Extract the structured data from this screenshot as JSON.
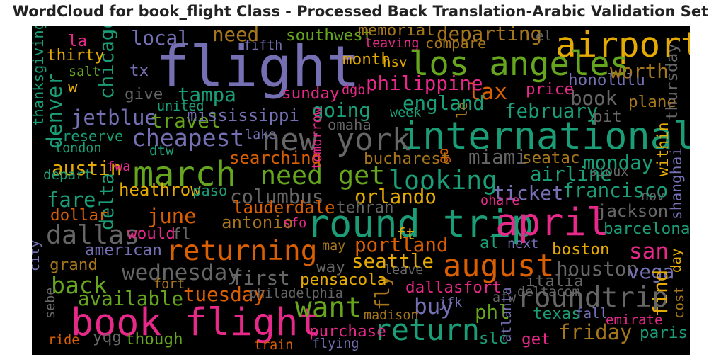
{
  "title": "WordCloud for book_flight Class - Processed Back Translation-Arabic Validation Set",
  "chart_data": {
    "type": "wordcloud",
    "title": "WordCloud for book_flight Class - Processed Back Translation-Arabic Validation Set",
    "background": "#000000",
    "palette": "Dark2",
    "words": [
      {
        "text": "flight",
        "weight": 1.0,
        "color": "#7570b3"
      },
      {
        "text": "international",
        "weight": 0.62,
        "color": "#1b9e77"
      },
      {
        "text": "round trip",
        "weight": 0.62,
        "color": "#1b9e77"
      },
      {
        "text": "april",
        "weight": 0.62,
        "color": "#e7298a"
      },
      {
        "text": "book flight",
        "weight": 0.62,
        "color": "#e7298a"
      },
      {
        "text": "airport",
        "weight": 0.56,
        "color": "#e6ab02"
      },
      {
        "text": "los angeles",
        "weight": 0.53,
        "color": "#66a61e"
      },
      {
        "text": "march",
        "weight": 0.55,
        "color": "#66a61e"
      },
      {
        "text": "new york",
        "weight": 0.48,
        "color": "#666666"
      },
      {
        "text": "august",
        "weight": 0.48,
        "color": "#d95f02"
      },
      {
        "text": "return",
        "weight": 0.45,
        "color": "#1b9e77"
      },
      {
        "text": "roundtrip",
        "weight": 0.42,
        "color": "#666666"
      },
      {
        "text": "want",
        "weight": 0.42,
        "color": "#66a61e"
      },
      {
        "text": "returning",
        "weight": 0.42,
        "color": "#d95f02"
      },
      {
        "text": "dallas",
        "weight": 0.38,
        "color": "#666666"
      },
      {
        "text": "need get",
        "weight": 0.38,
        "color": "#66a61e"
      },
      {
        "text": "looking",
        "weight": 0.38,
        "color": "#1b9e77"
      },
      {
        "text": "cheapest",
        "weight": 0.33,
        "color": "#7570b3"
      },
      {
        "text": "back",
        "weight": 0.33,
        "color": "#66a61e"
      },
      {
        "text": "wednesday",
        "weight": 0.3,
        "color": "#666666"
      },
      {
        "text": "lax",
        "weight": 0.3,
        "color": "#d95f02"
      },
      {
        "text": "buy",
        "weight": 0.3,
        "color": "#7570b3"
      },
      {
        "text": "san",
        "weight": 0.3,
        "color": "#e7298a"
      },
      {
        "text": "denver",
        "weight": 0.28,
        "color": "#1b9e77"
      },
      {
        "text": "chicago",
        "weight": 0.25,
        "color": "#1b9e77"
      },
      {
        "text": "jetblue",
        "weight": 0.27,
        "color": "#7570b3"
      },
      {
        "text": "fare",
        "weight": 0.27,
        "color": "#1b9e77"
      },
      {
        "text": "austin",
        "weight": 0.25,
        "color": "#e6ab02"
      },
      {
        "text": "june",
        "weight": 0.27,
        "color": "#d95f02"
      },
      {
        "text": "delta",
        "weight": 0.24,
        "color": "#1b9e77"
      },
      {
        "text": "friday",
        "weight": 0.27,
        "color": "#a6761d"
      },
      {
        "text": "departing",
        "weight": 0.25,
        "color": "#a6761d"
      },
      {
        "text": "local",
        "weight": 0.25,
        "color": "#7570b3"
      },
      {
        "text": "need",
        "weight": 0.25,
        "color": "#a6761d"
      },
      {
        "text": "philippine",
        "weight": 0.25,
        "color": "#e7298a"
      },
      {
        "text": "worth",
        "weight": 0.25,
        "color": "#a6761d"
      },
      {
        "text": "travel",
        "weight": 0.25,
        "color": "#66a61e"
      },
      {
        "text": "tampa",
        "weight": 0.25,
        "color": "#1b9e77"
      },
      {
        "text": "going",
        "weight": 0.25,
        "color": "#1b9e77"
      },
      {
        "text": "england",
        "weight": 0.25,
        "color": "#1b9e77"
      },
      {
        "text": "february",
        "weight": 0.25,
        "color": "#1b9e77"
      },
      {
        "text": "book",
        "weight": 0.25,
        "color": "#666666"
      },
      {
        "text": "monday",
        "weight": 0.25,
        "color": "#1b9e77"
      },
      {
        "text": "airline",
        "weight": 0.25,
        "color": "#1b9e77"
      },
      {
        "text": "ticket",
        "weight": 0.25,
        "color": "#7570b3"
      },
      {
        "text": "francisco",
        "weight": 0.25,
        "color": "#1b9e77"
      },
      {
        "text": "orlando",
        "weight": 0.25,
        "color": "#e6ab02"
      },
      {
        "text": "columbus",
        "weight": 0.25,
        "color": "#666666"
      },
      {
        "text": "miami",
        "weight": 0.25,
        "color": "#666666"
      },
      {
        "text": "portland",
        "weight": 0.25,
        "color": "#d95f02"
      },
      {
        "text": "seattle",
        "weight": 0.25,
        "color": "#e6ab02"
      },
      {
        "text": "houston",
        "weight": 0.25,
        "color": "#666666"
      },
      {
        "text": "vega",
        "weight": 0.25,
        "color": "#7570b3"
      },
      {
        "text": "first",
        "weight": 0.25,
        "color": "#666666"
      },
      {
        "text": "tuesday",
        "weight": 0.25,
        "color": "#d95f02"
      },
      {
        "text": "available",
        "weight": 0.25,
        "color": "#66a61e"
      },
      {
        "text": "find",
        "weight": 0.25,
        "color": "#e6ab02"
      },
      {
        "text": "phl",
        "weight": 0.25,
        "color": "#66a61e"
      },
      {
        "text": "fly",
        "weight": 0.25,
        "color": "#a6761d"
      },
      {
        "text": "mississippi",
        "weight": 0.2,
        "color": "#7570b3"
      },
      {
        "text": "searching",
        "weight": 0.2,
        "color": "#d95f02"
      },
      {
        "text": "heathrow",
        "weight": 0.2,
        "color": "#e6ab02"
      },
      {
        "text": "lauderdale",
        "weight": 0.2,
        "color": "#d95f02"
      },
      {
        "text": "antonio",
        "weight": 0.2,
        "color": "#a6761d"
      },
      {
        "text": "jackson",
        "weight": 0.2,
        "color": "#666666"
      },
      {
        "text": "barcelona",
        "weight": 0.18,
        "color": "#1b9e77"
      },
      {
        "text": "boston",
        "weight": 0.18,
        "color": "#e6ab02"
      },
      {
        "text": "pensacola",
        "weight": 0.18,
        "color": "#e6ab02"
      },
      {
        "text": "dallasfort",
        "weight": 0.18,
        "color": "#e7298a"
      },
      {
        "text": "italia",
        "weight": 0.18,
        "color": "#666666"
      },
      {
        "text": "texas",
        "weight": 0.18,
        "color": "#1b9e77"
      },
      {
        "text": "paris",
        "weight": 0.18,
        "color": "#1b9e77"
      },
      {
        "text": "purchase",
        "weight": 0.18,
        "color": "#e7298a"
      },
      {
        "text": "though",
        "weight": 0.18,
        "color": "#66a61e"
      },
      {
        "text": "yqg",
        "weight": 0.18,
        "color": "#666666"
      },
      {
        "text": "slc",
        "weight": 0.18,
        "color": "#1b9e77"
      },
      {
        "text": "get",
        "weight": 0.18,
        "color": "#e7298a"
      },
      {
        "text": "bucharest",
        "weight": 0.18,
        "color": "#a6761d"
      },
      {
        "text": "seatac",
        "weight": 0.18,
        "color": "#a6761d"
      },
      {
        "text": "tehran",
        "weight": 0.18,
        "color": "#666666"
      },
      {
        "text": "omaha",
        "weight": 0.15,
        "color": "#666666"
      },
      {
        "text": "southwest",
        "weight": 0.18,
        "color": "#66a61e"
      },
      {
        "text": "memorial",
        "weight": 0.18,
        "color": "#a6761d"
      },
      {
        "text": "compare",
        "weight": 0.15,
        "color": "#a6761d"
      },
      {
        "text": "month",
        "weight": 0.18,
        "color": "#e6ab02"
      },
      {
        "text": "sunday",
        "weight": 0.18,
        "color": "#e7298a"
      },
      {
        "text": "price",
        "weight": 0.18,
        "color": "#e7298a"
      },
      {
        "text": "honolulu",
        "weight": 0.18,
        "color": "#7570b3"
      },
      {
        "text": "plane",
        "weight": 0.18,
        "color": "#a6761d"
      },
      {
        "text": "thursday",
        "weight": 0.18,
        "color": "#666666"
      },
      {
        "text": "pit",
        "weight": 0.18,
        "color": "#666666"
      },
      {
        "text": "dollar",
        "weight": 0.18,
        "color": "#d95f02"
      },
      {
        "text": "american",
        "weight": 0.18,
        "color": "#7570b3"
      },
      {
        "text": "grand",
        "weight": 0.18,
        "color": "#a6761d"
      },
      {
        "text": "would",
        "weight": 0.18,
        "color": "#e7298a"
      },
      {
        "text": "fl",
        "weight": 0.18,
        "color": "#666666"
      },
      {
        "text": "way",
        "weight": 0.18,
        "color": "#666666"
      },
      {
        "text": "ft",
        "weight": 0.18,
        "color": "#e6ab02"
      },
      {
        "text": "al",
        "weight": 0.18,
        "color": "#1b9e77"
      },
      {
        "text": "la",
        "weight": 0.18,
        "color": "#e7298a"
      },
      {
        "text": "thirty",
        "weight": 0.18,
        "color": "#e6ab02"
      },
      {
        "text": "w",
        "weight": 0.18,
        "color": "#e6ab02"
      },
      {
        "text": "tx",
        "weight": 0.18,
        "color": "#7570b3"
      },
      {
        "text": "give",
        "weight": 0.18,
        "color": "#666666"
      },
      {
        "text": "within",
        "weight": 0.16,
        "color": "#e6ab02"
      },
      {
        "text": "shanghai",
        "weight": 0.16,
        "color": "#7570b3"
      },
      {
        "text": "thanksgiving",
        "weight": 0.15,
        "color": "#1b9e77"
      },
      {
        "text": "reserve",
        "weight": 0.15,
        "color": "#1b9e77"
      },
      {
        "text": "paso",
        "weight": 0.15,
        "color": "#1b9e77"
      },
      {
        "text": "depart",
        "weight": 0.13,
        "color": "#1b9e77"
      },
      {
        "text": "dtw",
        "weight": 0.13,
        "color": "#1b9e77"
      },
      {
        "text": "le",
        "weight": 0.13,
        "color": "#a6761d"
      },
      {
        "text": "el",
        "weight": 0.13,
        "color": "#666666"
      },
      {
        "text": "hsv",
        "weight": 0.13,
        "color": "#e6ab02"
      },
      {
        "text": "dgb",
        "weight": 0.12,
        "color": "#e7298a"
      },
      {
        "text": "cost",
        "weight": 0.13,
        "color": "#a6761d"
      },
      {
        "text": "day",
        "weight": 0.13,
        "color": "#e6ab02"
      },
      {
        "text": "emirate",
        "weight": 0.13,
        "color": "#e7298a"
      },
      {
        "text": "fall",
        "weight": 0.13,
        "color": "#7570b3"
      },
      {
        "text": "deltacom",
        "weight": 0.12,
        "color": "#666666"
      },
      {
        "text": "jfk",
        "weight": 0.12,
        "color": "#7570b3"
      },
      {
        "text": "madison",
        "weight": 0.12,
        "color": "#a6761d"
      },
      {
        "text": "afw",
        "weight": 0.12,
        "color": "#666666"
      },
      {
        "text": "atlanta",
        "weight": 0.12,
        "color": "#7570b3"
      },
      {
        "text": "flying",
        "weight": 0.12,
        "color": "#7570b3"
      },
      {
        "text": "train",
        "weight": 0.12,
        "color": "#d95f02"
      },
      {
        "text": "ride",
        "weight": 0.12,
        "color": "#d95f02"
      },
      {
        "text": "sebe",
        "weight": 0.12,
        "color": "#666666"
      },
      {
        "text": "fort",
        "weight": 0.12,
        "color": "#a6761d"
      },
      {
        "text": "philadelphia",
        "weight": 0.12,
        "color": "#666666"
      },
      {
        "text": "leave",
        "weight": 0.12,
        "color": "#666666"
      },
      {
        "text": "next",
        "weight": 0.12,
        "color": "#7570b3"
      },
      {
        "text": "may",
        "weight": 0.12,
        "color": "#a6761d"
      },
      {
        "text": "sfo",
        "weight": 0.12,
        "color": "#e7298a"
      },
      {
        "text": "ohare",
        "weight": 0.12,
        "color": "#e7298a"
      },
      {
        "text": "nov",
        "weight": 0.12,
        "color": "#666666"
      },
      {
        "text": "sioux",
        "weight": 0.12,
        "color": "#666666"
      },
      {
        "text": "go",
        "weight": 0.12,
        "color": "#d95f02"
      },
      {
        "text": "tomorrow",
        "weight": 0.12,
        "color": "#e7298a"
      },
      {
        "text": "fwa",
        "weight": 0.12,
        "color": "#e7298a"
      },
      {
        "text": "lake",
        "weight": 0.12,
        "color": "#7570b3"
      },
      {
        "text": "london",
        "weight": 0.12,
        "color": "#1b9e77"
      },
      {
        "text": "salt",
        "weight": 0.12,
        "color": "#66a61e"
      },
      {
        "text": "united",
        "weight": 0.12,
        "color": "#1b9e77"
      },
      {
        "text": "week",
        "weight": 0.12,
        "color": "#1b9e77"
      },
      {
        "text": "leaving",
        "weight": 0.12,
        "color": "#e7298a"
      },
      {
        "text": "fifth",
        "weight": 0.12,
        "color": "#7570b3"
      },
      {
        "text": "city",
        "weight": 0.12,
        "color": "#7570b3"
      }
    ]
  }
}
